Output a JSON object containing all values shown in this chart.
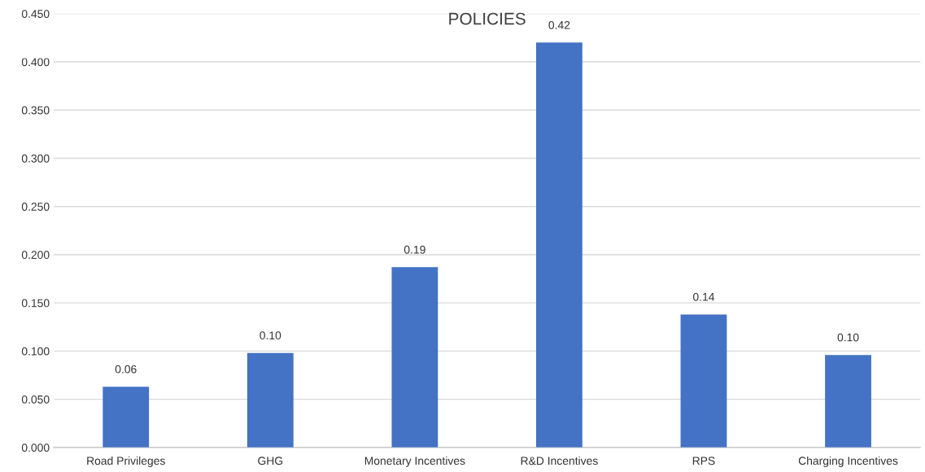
{
  "chart_data": {
    "type": "bar",
    "title": "POLICIES",
    "categories": [
      "Road Privileges",
      "GHG",
      "Monetary Incentives",
      "R&D Incentives",
      "RPS",
      "Charging Incentives"
    ],
    "values": [
      0.063,
      0.098,
      0.187,
      0.42,
      0.138,
      0.096
    ],
    "value_labels": [
      "0.06",
      "0.10",
      "0.19",
      "0.42",
      "0.14",
      "0.10"
    ],
    "color": "#4472c4",
    "ylim": [
      0,
      0.45
    ],
    "yticks": [
      {
        "value": 0,
        "label": "0.000"
      },
      {
        "value": 0.05,
        "label": "0.050"
      },
      {
        "value": 0.1,
        "label": "0.100"
      },
      {
        "value": 0.15,
        "label": "0.150"
      },
      {
        "value": 0.2,
        "label": "0.200"
      },
      {
        "value": 0.25,
        "label": "0.250"
      },
      {
        "value": 0.3,
        "label": "0.300"
      },
      {
        "value": 0.35,
        "label": "0.350"
      },
      {
        "value": 0.4,
        "label": "0.400"
      },
      {
        "value": 0.45,
        "label": "0.450"
      }
    ],
    "grid": "y",
    "legend": false
  }
}
